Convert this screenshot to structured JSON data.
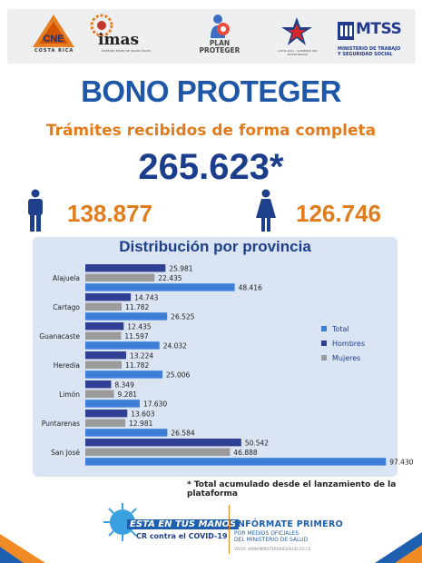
{
  "header_logos": {
    "cne": {
      "name": "CNE",
      "sub": "COSTA RICA"
    },
    "imas": {
      "name": "imas",
      "sub": "Instituto Mixto de Ayuda Social"
    },
    "plan": {
      "line1": "PLAN",
      "line2": "PROTEGER"
    },
    "costa_rica": {
      "sub": "COSTA RICA · GOBIERNO DEL BICENTENARIO"
    },
    "mtss": {
      "name": "MTSS",
      "line1": "MINISTERIO DE TRABAJO",
      "line2": "Y SEGURIDAD SOCIAL"
    }
  },
  "title": "BONO PROTEGER",
  "subtitle": "Trámites recibidos de forma completa",
  "total": "265.623*",
  "men_count": "138.877",
  "women_count": "126.746",
  "colors": {
    "title": "#1e56a8",
    "accent": "#e07c1c",
    "total_bar": "#3d7fd6",
    "men_bar": "#2f3f94",
    "women_bar": "#9a9a9a",
    "panel": "#dbe4f3"
  },
  "chart_data": {
    "type": "bar",
    "orientation": "horizontal",
    "title": "Distribución por provincia",
    "categories": [
      "Alajuela",
      "Cartago",
      "Guanacaste",
      "Heredia",
      "Limón",
      "Puntarenas",
      "San José"
    ],
    "series": [
      {
        "name": "Hombres",
        "values": [
          25981,
          14743,
          12435,
          13224,
          8349,
          13603,
          50542
        ],
        "labels": [
          "25.981",
          "14.743",
          "12.435",
          "13.224",
          "8.349",
          "13.603",
          "50.542"
        ]
      },
      {
        "name": "Mujeres",
        "values": [
          22435,
          11782,
          11597,
          11782,
          9281,
          12981,
          46888
        ],
        "labels": [
          "22.435",
          "11.782",
          "11.597",
          "11.782",
          "9.281",
          "12.981",
          "46.888"
        ]
      },
      {
        "name": "Total",
        "values": [
          48416,
          26525,
          24032,
          25006,
          17630,
          26584,
          97430
        ],
        "labels": [
          "48.416",
          "26.525",
          "24.032",
          "25.006",
          "17.630",
          "26.584",
          "97.430"
        ]
      }
    ],
    "legend": [
      "Total",
      "Hombres",
      "Mujeres"
    ],
    "legend_position": "right",
    "grid": false
  },
  "footnote": "* Total acumulado desde el lanzamiento de la plataforma",
  "footer": {
    "campaign_line1": "ESTÁ EN TUS MANOS",
    "campaign_line2": "CR contra el COVID-19",
    "inform_title": "INFÓRMATE PRIMERO",
    "inform_line1": "POR MEDIOS OFICIALES",
    "inform_line2": "DEL MINISTERIO DE SALUD",
    "inform_url": "VISITA: WWW.MINISTERIODESALUD.GO.CR"
  }
}
